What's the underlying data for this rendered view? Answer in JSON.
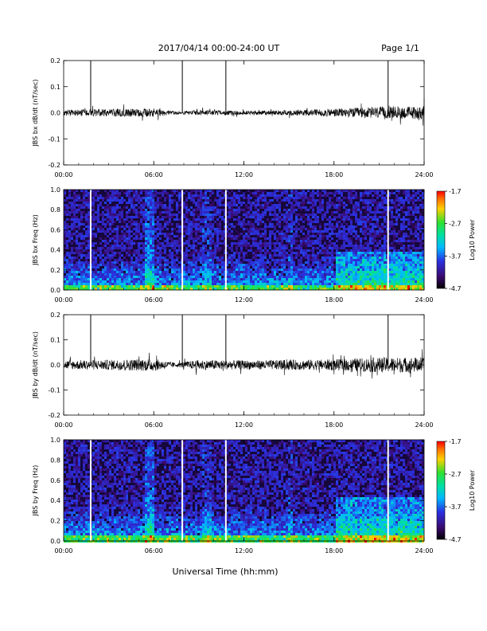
{
  "header": {
    "title": "2017/04/14   00:00-24:00 UT",
    "page": "Page 1/1"
  },
  "footer": {
    "xlabel": "Universal Time (hh:mm)"
  },
  "x_ticks": [
    "00:00",
    "06:00",
    "12:00",
    "18:00",
    "24:00"
  ],
  "colorbar": {
    "label": "Log10 Power",
    "ticks": [
      "-1.7",
      "-2.7",
      "-3.7",
      "-4.7"
    ],
    "range": [
      -4.7,
      -1.7
    ]
  },
  "colors": {
    "spec_bg": "#16083a",
    "trace": "#000000"
  },
  "chart_data": [
    {
      "type": "line",
      "ylabel": "JBS bx dB/dt (nT/sec)",
      "xlim_hours": [
        0,
        24
      ],
      "ylim": [
        -0.2,
        0.2
      ],
      "y_ticks": [
        "0.2",
        "0.1",
        "0.0",
        "-0.1",
        "-0.2"
      ],
      "noise_envelope_hours": [
        0,
        3,
        6,
        7.5,
        9,
        12,
        15,
        18,
        21,
        24
      ],
      "noise_amplitude": [
        0.012,
        0.014,
        0.016,
        0.006,
        0.01,
        0.008,
        0.01,
        0.016,
        0.022,
        0.025
      ],
      "spikes": [
        {
          "x": 1.8,
          "y": 0.2
        },
        {
          "x": 7.9,
          "y": 0.2
        },
        {
          "x": 10.8,
          "y": 0.2
        },
        {
          "x": 21.6,
          "y": 0.2
        }
      ]
    },
    {
      "type": "heatmap",
      "ylabel": "JBS bx Freq (Hz)",
      "xlim_hours": [
        0,
        24
      ],
      "ylim": [
        0.0,
        1.0
      ],
      "y_ticks": [
        "1.0",
        "0.8",
        "0.6",
        "0.4",
        "0.2",
        "0.0"
      ],
      "gaps_hours": [
        1.8,
        7.9,
        10.8,
        21.6
      ],
      "enhanced_region_hours": [
        18,
        24
      ],
      "enhanced_region_freq": [
        0.0,
        0.4
      ]
    },
    {
      "type": "line",
      "ylabel": "JBS by dB/dt (nT/sec)",
      "xlim_hours": [
        0,
        24
      ],
      "ylim": [
        -0.2,
        0.2
      ],
      "y_ticks": [
        "0.2",
        "0.1",
        "0.0",
        "-0.1",
        "-0.2"
      ],
      "noise_envelope_hours": [
        0,
        3,
        6,
        7.5,
        9,
        12,
        15,
        18,
        21,
        24
      ],
      "noise_amplitude": [
        0.018,
        0.02,
        0.025,
        0.008,
        0.02,
        0.018,
        0.02,
        0.022,
        0.03,
        0.03
      ],
      "spikes": [
        {
          "x": 1.8,
          "y": 0.2
        },
        {
          "x": 7.9,
          "y": 0.2
        },
        {
          "x": 10.8,
          "y": 0.2
        },
        {
          "x": 21.6,
          "y": 0.2
        }
      ]
    },
    {
      "type": "heatmap",
      "ylabel": "JBS by Freq (Hz)",
      "xlim_hours": [
        0,
        24
      ],
      "ylim": [
        0.0,
        1.0
      ],
      "y_ticks": [
        "1.0",
        "0.8",
        "0.6",
        "0.4",
        "0.2",
        "0.0"
      ],
      "gaps_hours": [
        1.8,
        7.9,
        10.8,
        21.6
      ],
      "enhanced_region_hours": [
        18,
        24
      ],
      "enhanced_region_freq": [
        0.0,
        0.45
      ]
    }
  ]
}
